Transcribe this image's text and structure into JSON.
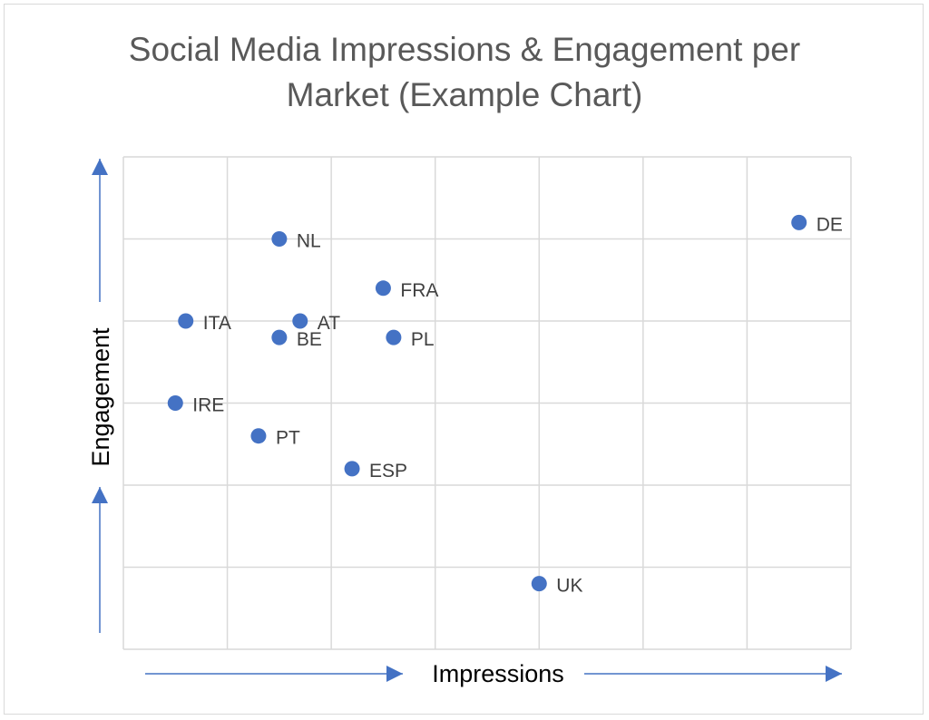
{
  "colors": {
    "marker": "#4472c4",
    "arrow": "#4472c4",
    "grid": "#d9d9d9",
    "title": "#595959",
    "label": "#404040"
  },
  "chart_data": {
    "type": "scatter",
    "title_line1": "Social Media Impressions & Engagement per",
    "title_line2": "Market (Example Chart)",
    "xlabel": "Impressions",
    "ylabel": "Engagement",
    "xlim": [
      0,
      7
    ],
    "ylim": [
      0,
      6
    ],
    "grid": true,
    "tick_labels_shown": false,
    "points": [
      {
        "label": "DE",
        "x": 6.5,
        "y": 5.2
      },
      {
        "label": "NL",
        "x": 1.5,
        "y": 5.0
      },
      {
        "label": "FRA",
        "x": 2.5,
        "y": 4.4
      },
      {
        "label": "ITA",
        "x": 0.6,
        "y": 4.0
      },
      {
        "label": "AT",
        "x": 1.7,
        "y": 4.0
      },
      {
        "label": "BE",
        "x": 1.5,
        "y": 3.8
      },
      {
        "label": "PL",
        "x": 2.6,
        "y": 3.8
      },
      {
        "label": "IRE",
        "x": 0.5,
        "y": 3.0
      },
      {
        "label": "PT",
        "x": 1.3,
        "y": 2.6
      },
      {
        "label": "ESP",
        "x": 2.2,
        "y": 2.2
      },
      {
        "label": "UK",
        "x": 4.0,
        "y": 0.8
      }
    ]
  }
}
